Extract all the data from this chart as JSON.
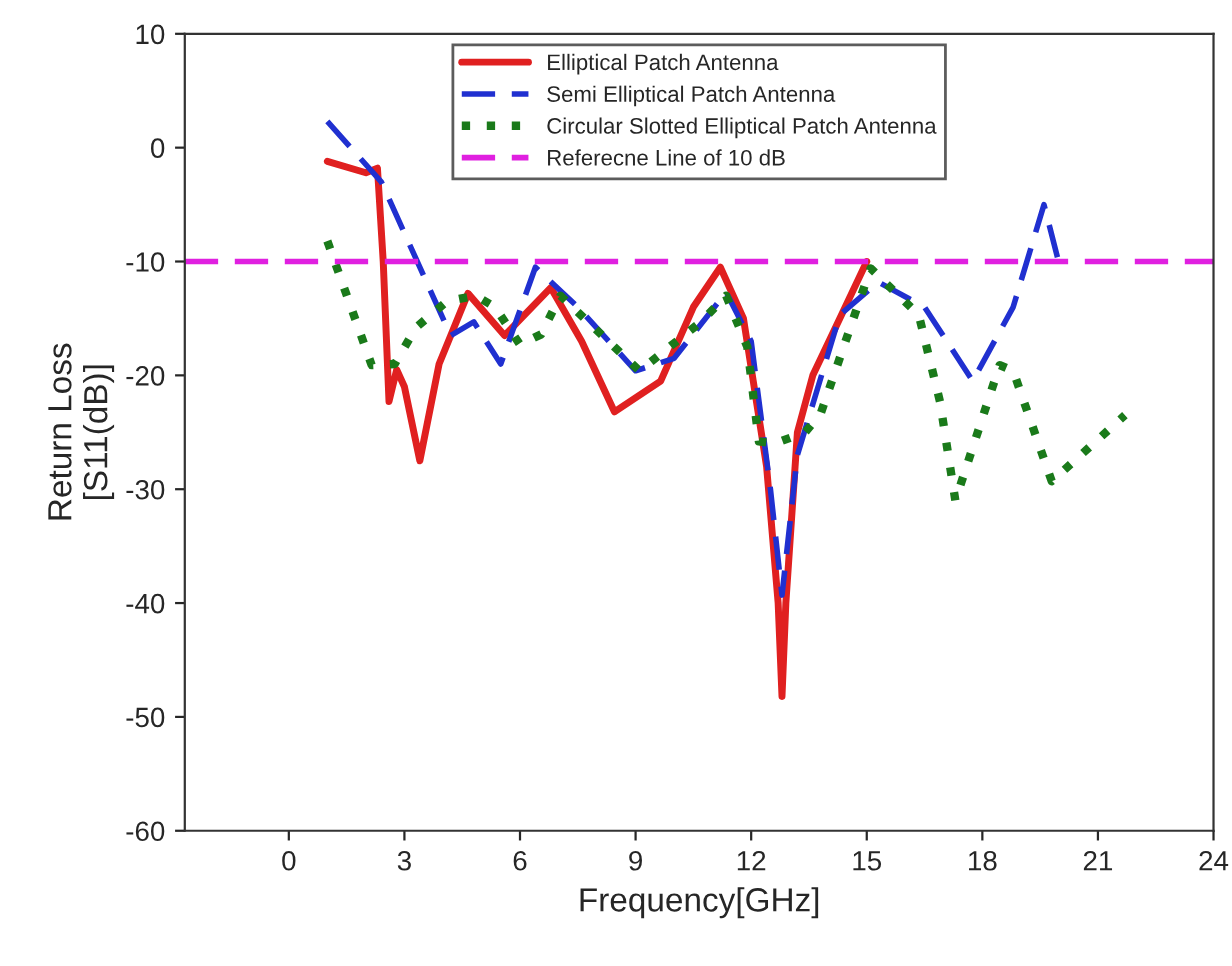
{
  "chart_data": {
    "type": "line",
    "xlabel": "Frequency[GHz]",
    "ylabel": "Return Loss\n[S11(dB)]",
    "xlim": [
      -2.7,
      24
    ],
    "xticks": [
      0,
      3,
      6,
      9,
      12,
      15,
      18,
      21,
      24
    ],
    "ylim": [
      -60,
      10
    ],
    "yticks": [
      -60,
      -50,
      -40,
      -30,
      -20,
      -10,
      0,
      10
    ],
    "grid": false,
    "legend": "top",
    "marker": "none",
    "series": [
      {
        "name": "Elliptical Patch Antenna",
        "color": "#e02020",
        "line_style": "solid",
        "x": [
          1.0,
          2.0,
          2.3,
          2.45,
          2.6,
          2.8,
          3.0,
          3.4,
          3.9,
          4.65,
          5.6,
          6.8,
          7.6,
          8.45,
          9.65,
          10.5,
          11.2,
          11.8,
          12.4,
          12.7,
          12.8,
          12.9,
          13.2,
          13.6,
          14.3,
          15.0
        ],
        "values": [
          -1.2,
          -2.2,
          -1.8,
          -10,
          -22.3,
          -19.5,
          -21,
          -27.5,
          -19,
          -12.8,
          -16.5,
          -12.3,
          -17,
          -23.2,
          -20.5,
          -14,
          -10.5,
          -15,
          -28,
          -40,
          -48.2,
          -40,
          -25,
          -20,
          -15,
          -10
        ]
      },
      {
        "name": "Semi Elliptical Patch Antenna",
        "color": "#2030d0",
        "line_style": "dashed",
        "x": [
          1.0,
          2.4,
          3.2,
          4.2,
          4.8,
          5.5,
          6.4,
          7.5,
          9.0,
          10.0,
          11.35,
          12.0,
          12.5,
          12.8,
          13.2,
          14.3,
          15.3,
          16.5,
          17.75,
          18.8,
          19.6,
          20.0
        ],
        "values": [
          2.3,
          -3,
          -9,
          -16.5,
          -15.3,
          -19,
          -10.5,
          -14,
          -19.6,
          -18.5,
          -12.7,
          -17,
          -30,
          -39.3,
          -27,
          -14.7,
          -11.8,
          -14,
          -20.5,
          -14,
          -5,
          -10.3
        ]
      },
      {
        "name": "Circular Slotted Elliptical Patch Antenna",
        "color": "#1a7a1a",
        "line_style": "dotted",
        "x": [
          1.0,
          2.15,
          2.75,
          3.3,
          4.1,
          4.85,
          5.35,
          6.0,
          6.55,
          7.05,
          9.1,
          10.7,
          11.35,
          11.9,
          12.2,
          12.6,
          13.4,
          13.8,
          15.1,
          16.35,
          16.9,
          17.3,
          18.45,
          18.8,
          19.8,
          21.7
        ],
        "values": [
          -8.2,
          -19.1,
          -19,
          -15.8,
          -13.5,
          -13,
          -14,
          -17.3,
          -16.4,
          -13,
          -19.6,
          -15.3,
          -13,
          -17.5,
          -25.8,
          -26,
          -25,
          -23.4,
          -10.6,
          -14.7,
          -22.3,
          -31,
          -19.1,
          -19.6,
          -29.3,
          -23.5
        ]
      }
    ],
    "ref_lines": [
      {
        "axis": "y",
        "value": -10,
        "label": "Referecne Line of 10 dB",
        "color": "#e020e0",
        "line_style": "dashed"
      }
    ]
  }
}
